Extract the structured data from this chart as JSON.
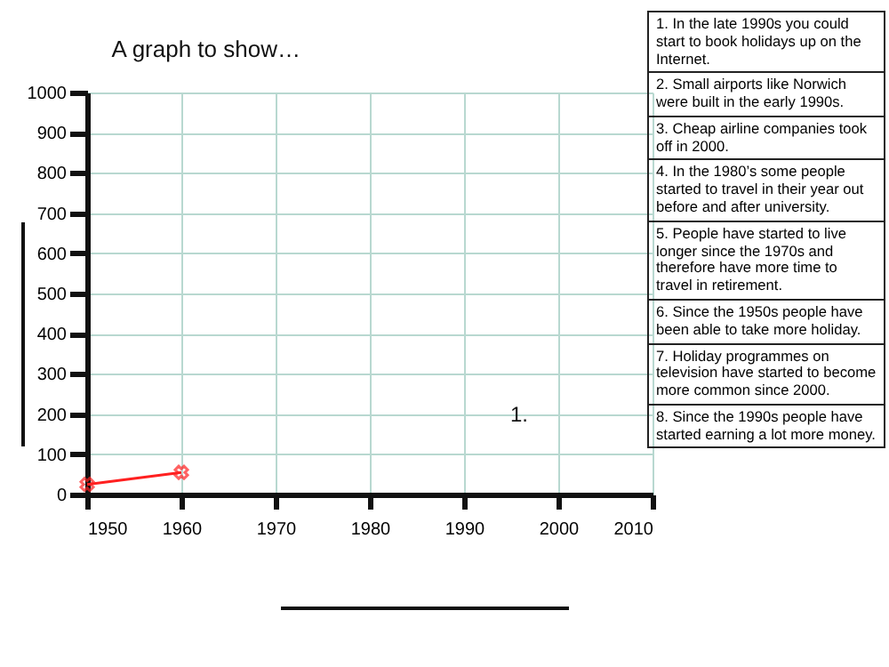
{
  "chart_data": {
    "type": "line",
    "title": "A graph to show…",
    "x": [
      1950,
      1960
    ],
    "series": [
      {
        "color": "#ff2020",
        "values": [
          25,
          55
        ]
      }
    ],
    "xlim": [
      1950,
      2010
    ],
    "xticks": [
      1950,
      1960,
      1970,
      1980,
      1990,
      2000,
      2010
    ],
    "ylim": [
      0,
      1000
    ],
    "yticks": [
      0,
      100,
      200,
      300,
      400,
      500,
      600,
      700,
      800,
      900,
      1000
    ],
    "grid": true,
    "marker": "cross",
    "line_style": "solid",
    "annotations": [
      "1.",
      "1. In the late 1990s you could start to book holidays up on the Internet.",
      "2. Small airports like Norwich were built in the early 1990s.",
      "3. Cheap airline companies took off in 2000.",
      "4. In the 1980’s some people started to travel in their year out before and after university.",
      "5. People have started to live longer since the 1970s and therefore have more time to travel in retirement.",
      "6. Since the 1950s people have been able to take more holiday.",
      "7. Holiday programmes on television have started to become more common since  2000.",
      "8. Since the 1990s people have started earning a lot more money."
    ]
  }
}
